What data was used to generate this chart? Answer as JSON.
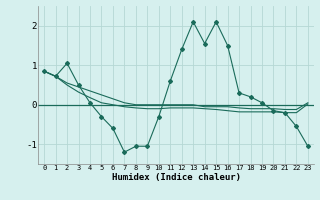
{
  "xlabel": "Humidex (Indice chaleur)",
  "x": [
    0,
    1,
    2,
    3,
    4,
    5,
    6,
    7,
    8,
    9,
    10,
    11,
    12,
    13,
    14,
    15,
    16,
    17,
    18,
    19,
    20,
    21,
    22,
    23
  ],
  "line1": [
    0.85,
    0.72,
    1.05,
    0.5,
    0.05,
    -0.3,
    -0.6,
    -1.2,
    -1.05,
    -1.05,
    -0.3,
    0.6,
    1.4,
    2.1,
    1.55,
    2.1,
    1.5,
    0.3,
    0.2,
    0.05,
    -0.15,
    -0.2,
    -0.55,
    -1.05
  ],
  "line2": [
    0.85,
    0.72,
    0.55,
    0.45,
    0.35,
    0.25,
    0.15,
    0.05,
    0.0,
    0.0,
    0.0,
    0.0,
    0.0,
    0.0,
    -0.05,
    -0.05,
    -0.05,
    -0.08,
    -0.1,
    -0.1,
    -0.1,
    -0.12,
    -0.12,
    0.05
  ],
  "line3": [
    0.85,
    0.72,
    0.5,
    0.32,
    0.18,
    0.05,
    0.0,
    -0.05,
    -0.08,
    -0.1,
    -0.1,
    -0.08,
    -0.08,
    -0.08,
    -0.1,
    -0.12,
    -0.15,
    -0.18,
    -0.18,
    -0.18,
    -0.18,
    -0.2,
    -0.2,
    0.02
  ],
  "color": "#1a6b5a",
  "bg_color": "#d6f0ee",
  "grid_color": "#b5d8d4",
  "ylim": [
    -1.5,
    2.5
  ],
  "yticks": [
    -1,
    0,
    1,
    2
  ],
  "xticks": [
    0,
    1,
    2,
    3,
    4,
    5,
    6,
    7,
    8,
    9,
    10,
    11,
    12,
    13,
    14,
    15,
    16,
    17,
    18,
    19,
    20,
    21,
    22,
    23
  ]
}
